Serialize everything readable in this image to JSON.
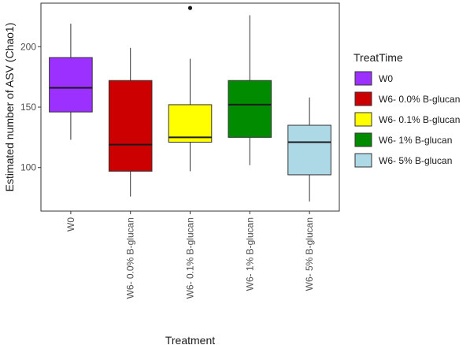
{
  "chart_data": {
    "type": "box",
    "xlabel": "Treatment",
    "ylabel": "Estimated number of ASV (Chao1)",
    "ylim": [
      64,
      236
    ],
    "yticks": [
      100,
      150,
      200
    ],
    "grid": false,
    "legend_title": "TreatTime",
    "legend_position": "right",
    "categories": [
      "W0",
      "W6- 0.0% B-glucan",
      "W6- 0.1% B-glucan",
      "W6- 1% B-glucan",
      "W6- 5% B-glucan"
    ],
    "series": [
      {
        "name": "W0",
        "color": "#9b30ff",
        "min": 123,
        "q1": 146,
        "median": 166,
        "q3": 191,
        "max": 219,
        "outliers": []
      },
      {
        "name": "W6- 0.0% B-glucan",
        "color": "#cc0000",
        "min": 76,
        "q1": 97,
        "median": 119,
        "q3": 172,
        "max": 199,
        "outliers": []
      },
      {
        "name": "W6- 0.1% B-glucan",
        "color": "#ffff00",
        "min": 97,
        "q1": 121,
        "median": 125,
        "q3": 152,
        "max": 190,
        "outliers": [
          232
        ]
      },
      {
        "name": "W6- 1% B-glucan",
        "color": "#008b00",
        "min": 102,
        "q1": 125,
        "median": 152,
        "q3": 172,
        "max": 226,
        "outliers": []
      },
      {
        "name": "W6- 5% B-glucan",
        "color": "#add8e6",
        "min": 72,
        "q1": 94,
        "median": 121,
        "q3": 135,
        "max": 158,
        "outliers": []
      }
    ]
  }
}
